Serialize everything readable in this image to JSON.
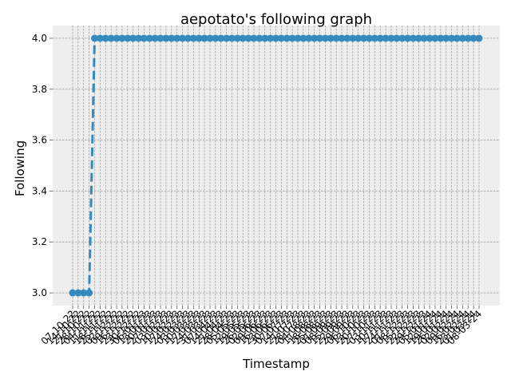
{
  "chart_data": {
    "type": "line",
    "title": "aepotato's following graph",
    "xlabel": "Timestamp",
    "ylabel": "Following",
    "ylim": [
      2.95,
      4.05
    ],
    "yticks": [
      "3.0",
      "3.2",
      "3.4",
      "3.6",
      "3.8",
      "4.0"
    ],
    "ytick_values": [
      3.0,
      3.2,
      3.4,
      3.6,
      3.8,
      4.0
    ],
    "x": [
      "07-10-22",
      "14-10-22",
      "21-10-22",
      "28-10-22",
      "04-11-22",
      "11-11-22",
      "18-11-22",
      "25-11-22",
      "02-12-22",
      "09-12-22",
      "16-12-22",
      "23-12-22",
      "30-12-22",
      "06-01-23",
      "13-01-23",
      "20-01-23",
      "27-01-23",
      "03-02-23",
      "10-02-23",
      "17-02-23",
      "24-02-23",
      "03-03-23",
      "10-03-23",
      "17-03-23",
      "24-03-23",
      "31-03-23",
      "07-04-23",
      "14-04-23",
      "21-04-23",
      "28-04-23",
      "05-05-23",
      "12-05-23",
      "19-05-23",
      "26-05-23",
      "02-06-23",
      "09-06-23",
      "16-06-23",
      "23-06-23",
      "30-06-23",
      "07-07-23",
      "14-07-23",
      "21-07-23",
      "28-07-23",
      "04-08-23",
      "11-08-23",
      "18-08-23",
      "25-08-23",
      "01-09-23",
      "08-09-23",
      "15-09-23",
      "22-09-23",
      "29-09-23",
      "06-10-23",
      "13-10-23",
      "20-10-23",
      "27-10-23",
      "03-11-23",
      "10-11-23",
      "17-11-23",
      "24-11-23",
      "01-12-23",
      "08-12-23",
      "15-12-23",
      "22-12-23",
      "29-12-23",
      "05-01-24",
      "12-01-24",
      "19-01-24",
      "26-01-24",
      "02-02-24",
      "09-02-24",
      "16-02-24",
      "23-02-24",
      "01-03-24",
      "08-03-24"
    ],
    "series": [
      {
        "values": [
          3,
          3,
          3,
          3,
          4,
          4,
          4,
          4,
          4,
          4,
          4,
          4,
          4,
          4,
          4,
          4,
          4,
          4,
          4,
          4,
          4,
          4,
          4,
          4,
          4,
          4,
          4,
          4,
          4,
          4,
          4,
          4,
          4,
          4,
          4,
          4,
          4,
          4,
          4,
          4,
          4,
          4,
          4,
          4,
          4,
          4,
          4,
          4,
          4,
          4,
          4,
          4,
          4,
          4,
          4,
          4,
          4,
          4,
          4,
          4,
          4,
          4,
          4,
          4,
          4,
          4,
          4,
          4,
          4,
          4,
          4,
          4,
          4,
          4,
          4
        ],
        "color": "#348abd",
        "line_style": "dashed",
        "marker": "circle"
      }
    ],
    "grid": true,
    "grid_style": "dashed",
    "background": "#eeeeee",
    "grid_color": "#888888",
    "xtick_rotation": "45"
  }
}
